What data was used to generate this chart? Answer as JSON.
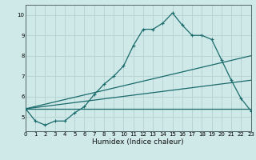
{
  "xlabel": "Humidex (Indice chaleur)",
  "ylabel": "",
  "bg_color": "#cfe8e8",
  "grid_color": "#b8d4d4",
  "line_color": "#1a6b6b",
  "xlim": [
    0,
    23
  ],
  "ylim": [
    4.3,
    10.5
  ],
  "yticks": [
    5,
    6,
    7,
    8,
    9,
    10
  ],
  "xticks": [
    0,
    1,
    2,
    3,
    4,
    5,
    6,
    7,
    8,
    9,
    10,
    11,
    12,
    13,
    14,
    15,
    16,
    17,
    18,
    19,
    20,
    21,
    22,
    23
  ],
  "line1_x": [
    0,
    1,
    2,
    3,
    4,
    5,
    6,
    7,
    8,
    9,
    10,
    11,
    12,
    13,
    14,
    15,
    16,
    17,
    18,
    19,
    20,
    21,
    22,
    23
  ],
  "line1_y": [
    5.4,
    4.8,
    4.6,
    4.8,
    4.8,
    5.2,
    5.5,
    6.1,
    6.6,
    7.0,
    7.5,
    8.5,
    9.3,
    9.3,
    9.6,
    10.1,
    9.5,
    9.0,
    9.0,
    8.8,
    7.8,
    6.8,
    5.9,
    5.3
  ],
  "line2_x": [
    0,
    23
  ],
  "line2_y": [
    5.4,
    8.0
  ],
  "line3_x": [
    0,
    23
  ],
  "line3_y": [
    5.4,
    6.8
  ],
  "line4_x": [
    0,
    23
  ],
  "line4_y": [
    5.4,
    5.4
  ]
}
